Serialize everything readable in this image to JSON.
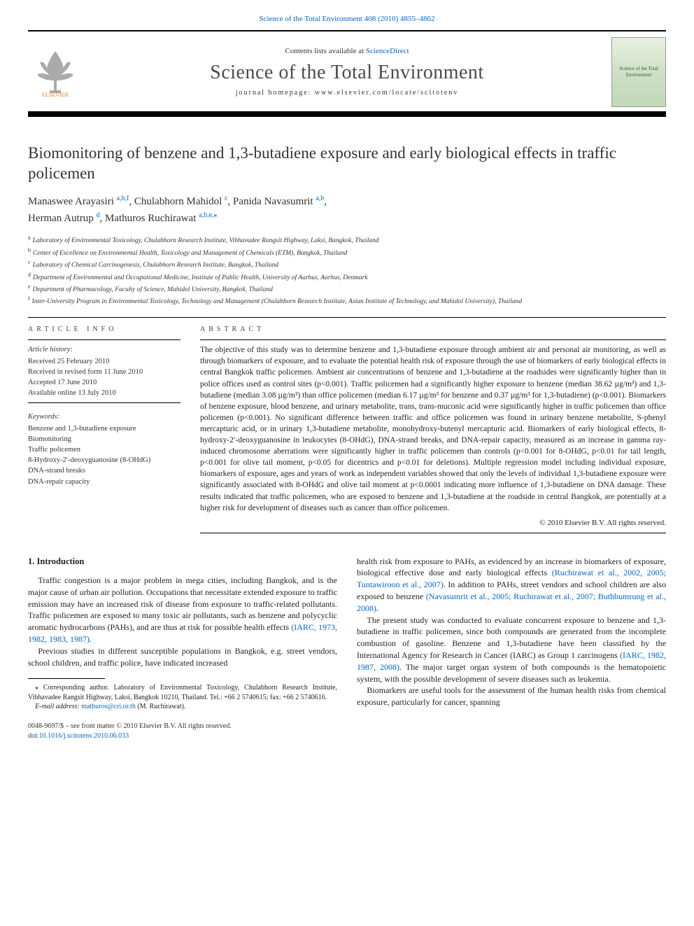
{
  "top_link": {
    "prefix_text": "Science of the Total Environment 408 (2010) 4855–4862",
    "prefix_color": "#0066cc"
  },
  "masthead": {
    "contents_prefix": "Contents lists available at ",
    "contents_link": "ScienceDirect",
    "journal_title": "Science of the Total Environment",
    "homepage_label": "journal homepage: www.elsevier.com/locate/scitotenv",
    "publisher_name": "ELSEVIER",
    "cover_text": "Science of the Total Environment"
  },
  "article": {
    "title": "Biomonitoring of benzene and 1,3-butadiene exposure and early biological effects in traffic policemen",
    "authors_html": [
      {
        "name": "Manaswee Arayasiri",
        "affs": "a,b,f",
        "corr": false
      },
      {
        "name": "Chulabhorn Mahidol",
        "affs": "c",
        "corr": false
      },
      {
        "name": "Panida Navasumrit",
        "affs": "a,b",
        "corr": false
      },
      {
        "name": "Herman Autrup",
        "affs": "d",
        "corr": false
      },
      {
        "name": "Mathuros Ruchirawat",
        "affs": "a,b,e",
        "corr": true
      }
    ],
    "affiliations": [
      {
        "key": "a",
        "text": "Laboratory of Environmental Toxicology, Chulabhorn Research Institute, Vibhavadee Rangsit Highway, Laksi, Bangkok, Thailand"
      },
      {
        "key": "b",
        "text": "Center of Excellence on Environmental Health, Toxicology and Management of Chemicals (ETM), Bangkok, Thailand"
      },
      {
        "key": "c",
        "text": "Laboratory of Chemical Carcinogenesis, Chulabhorn Research Institute, Bangkok, Thailand"
      },
      {
        "key": "d",
        "text": "Department of Environmental and Occupational Medicine, Institute of Public Health, University of Aarhus, Aarhus, Denmark"
      },
      {
        "key": "e",
        "text": "Department of Pharmacology, Faculty of Science, Mahidol University, Bangkok, Thailand"
      },
      {
        "key": "f",
        "text": "Inter-University Program in Environmental Toxicology, Technology and Management (Chulabhorn Research Institute, Asian Institute of Technology, and Mahidol University), Thailand"
      }
    ]
  },
  "article_info": {
    "label": "ARTICLE INFO",
    "history_head": "Article history:",
    "history": [
      "Received 25 February 2010",
      "Received in revised form 11 June 2010",
      "Accepted 17 June 2010",
      "Available online 13 July 2010"
    ],
    "keywords_head": "Keywords:",
    "keywords": [
      "Benzene and 1,3-butadiene exposure",
      "Biomonitoring",
      "Traffic policemen",
      "8-Hydroxy-2′-deoxyguanosine (8-OHdG)",
      "DNA-strand breaks",
      "DNA-repair capacity"
    ]
  },
  "abstract": {
    "label": "ABSTRACT",
    "text": "The objective of this study was to determine benzene and 1,3-butadiene exposure through ambient air and personal air monitoring, as well as through biomarkers of exposure, and to evaluate the potential health risk of exposure through the use of biomarkers of early biological effects in central Bangkok traffic policemen. Ambient air concentrations of benzene and 1,3-butadiene at the roadsides were significantly higher than in police offices used as control sites (p<0.001). Traffic policemen had a significantly higher exposure to benzene (median 38.62 µg/m³) and 1,3-butadiene (median 3.08 µg/m³) than office policemen (median 6.17 µg/m³ for benzene and 0.37 µg/m³ for 1,3-butadiene) (p<0.001). Biomarkers of benzene exposure, blood benzene, and urinary metabolite, trans, trans-muconic acid were significantly higher in traffic policemen than office policemen (p<0.001). No significant difference between traffic and office policemen was found in urinary benzene metabolite, S-phenyl mercapturic acid, or in urinary 1,3-butadiene metabolite, monohydroxy-butenyl mercapturic acid. Biomarkers of early biological effects, 8-hydroxy-2′-deoxyguanosine in leukocytes (8-OHdG), DNA-strand breaks, and DNA-repair capacity, measured as an increase in gamma ray-induced chromosome aberrations were significantly higher in traffic policemen than controls (p<0.001 for 8-OHdG, p<0.01 for tail length, p<0.001 for olive tail moment, p<0.05 for dicentrics and p<0.01 for deletions). Multiple regression model including individual exposure, biomarkers of exposure, ages and years of work as independent variables showed that only the levels of individual 1,3-butadiene exposure were significantly associated with 8-OHdG and olive tail moment at p<0.0001 indicating more influence of 1,3-butadiene on DNA damage. These results indicated that traffic policemen, who are exposed to benzene and 1,3-butadiene at the roadside in central Bangkok, are potentially at a higher risk for development of diseases such as cancer than office policemen.",
    "copyright": "© 2010 Elsevier B.V. All rights reserved."
  },
  "body": {
    "section_heading": "1. Introduction",
    "p1": "Traffic congestion is a major problem in mega cities, including Bangkok, and is the major cause of urban air pollution. Occupations that necessitate extended exposure to traffic emission may have an increased risk of disease from exposure to traffic-related pollutants. Traffic policemen are exposed to many toxic air pollutants, such as benzene and polycyclic aromatic hydrocarbons (PAHs), and are thus at risk for possible health effects ",
    "p1_ref": "(IARC, 1973, 1982, 1983, 1987)",
    "p1_tail": ".",
    "p2": "Previous studies in different susceptible populations in Bangkok, e.g. street vendors, school children, and traffic police, have indicated increased",
    "p3a": "health risk from exposure to PAHs, as evidenced by an increase in biomarkers of exposure, biological effective dose and early biological effects ",
    "p3_ref1": "(Ruchirawat et al., 2002, 2005; Tuntawiroon et al., 2007)",
    "p3b": ". In addition to PAHs, street vendors and school children are also exposed to benzene ",
    "p3_ref2": "(Navasumrit et al., 2005; Ruchirawat et al., 2007; Buthbumrung et al., 2008)",
    "p3c": ".",
    "p4a": "The present study was conducted to evaluate concurrent exposure to benzene and 1,3-butadiene in traffic policemen, since both compounds are generated from the incomplete combustion of gasoline. Benzene and 1,3-butadiene have been classified by the International Agency for Research in Cancer (IARC) as Group 1 carcinogens ",
    "p4_ref": "(IARC, 1982, 1987, 2008)",
    "p4b": ". The major target organ system of both compounds is the hematopoietic system, with the possible development of severe diseases such as leukemia.",
    "p5": "Biomarkers are useful tools for the assessment of the human health risks from chemical exposure, particularly for cancer, spanning"
  },
  "footnotes": {
    "corr_label": "⁎ Corresponding author. Laboratory of Environmental Toxicology, Chulabhorn Research Institute, Vibhavadee Rangsit Highway, Laksi, Bangkok 10210, Thailand. Tel.: +66 2 5740615; fax: +66 2 5740616.",
    "email_label": "E-mail address:",
    "email_value": "mathuros@cri.or.th",
    "email_tail": " (M. Ruchirawat)."
  },
  "bottom": {
    "issn_line": "0048-9697/$ – see front matter © 2010 Elsevier B.V. All rights reserved.",
    "doi_prefix": "doi:",
    "doi": "10.1016/j.scitotenv.2010.06.033"
  },
  "colors": {
    "link": "#0066cc",
    "text": "#1a1a1a",
    "muted": "#333333",
    "rule": "#000000"
  }
}
